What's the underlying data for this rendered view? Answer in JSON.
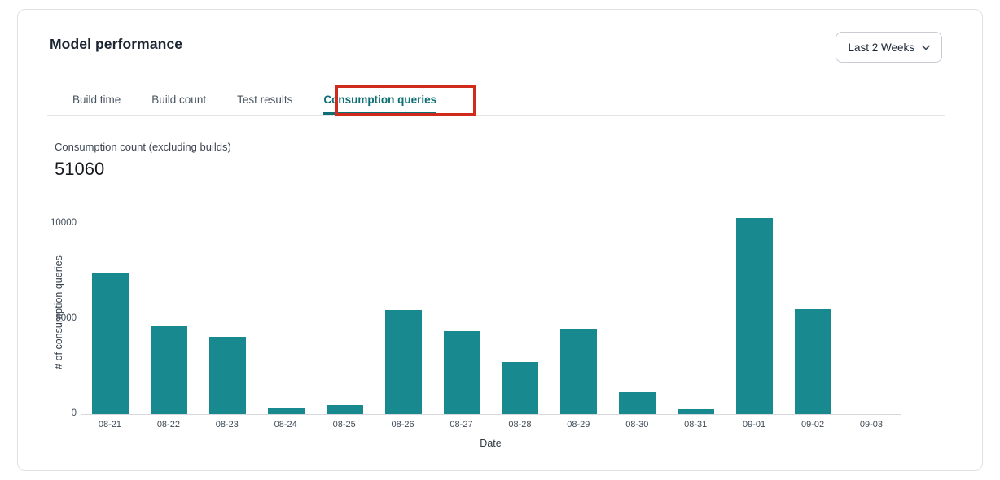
{
  "header": {
    "title": "Model performance",
    "range_selector": {
      "label": "Last 2 Weeks"
    }
  },
  "tabs": [
    {
      "label": "Build time",
      "active": false
    },
    {
      "label": "Build count",
      "active": false
    },
    {
      "label": "Test results",
      "active": false
    },
    {
      "label": "Consumption queries",
      "active": true
    }
  ],
  "annotation": {
    "color": "#d02a1d"
  },
  "metric": {
    "label": "Consumption count (excluding builds)",
    "value": "51060"
  },
  "colors": {
    "bar": "#18898e",
    "active_tab": "#0d6e73",
    "axis_line": "#d9d9dd"
  },
  "chart_data": {
    "type": "bar",
    "title": "Consumption count (excluding builds)",
    "categories": [
      "08-21",
      "08-22",
      "08-23",
      "08-24",
      "08-25",
      "08-26",
      "08-27",
      "08-28",
      "08-29",
      "08-30",
      "08-31",
      "09-01",
      "09-02",
      "09-03"
    ],
    "values": [
      7400,
      4600,
      4050,
      350,
      450,
      5450,
      4350,
      2750,
      4450,
      1150,
      250,
      10310,
      5500,
      0
    ],
    "xlabel": "Date",
    "ylabel": "# of consumption queries",
    "ylim": [
      0,
      10800
    ],
    "yticks": [
      0,
      5000,
      10000
    ],
    "grid": false,
    "legend": false,
    "bar_color": "#18898e"
  }
}
